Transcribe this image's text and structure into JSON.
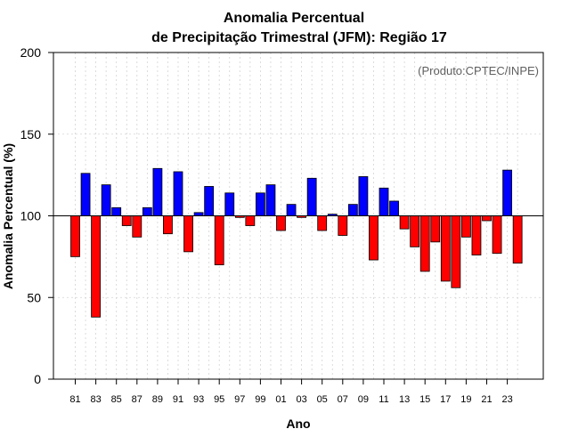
{
  "chart_data": {
    "type": "bar",
    "title_line1": "Anomalia Percentual",
    "title_line2": "de Precipitação Trimestral (JFM): Região 17",
    "xlabel": "Ano",
    "ylabel": "Anomalia Percentual (%)",
    "credit": "(Produto:CPTEC/INPE)",
    "ylim": [
      0,
      200
    ],
    "yticks": [
      0,
      50,
      100,
      150,
      200
    ],
    "baseline": 100,
    "grid": true,
    "categories": [
      "81",
      "82",
      "83",
      "84",
      "85",
      "86",
      "87",
      "88",
      "89",
      "90",
      "91",
      "92",
      "93",
      "94",
      "95",
      "96",
      "97",
      "98",
      "99",
      "00",
      "01",
      "02",
      "03",
      "04",
      "05",
      "06",
      "07",
      "08",
      "09",
      "10",
      "11",
      "12",
      "13",
      "14",
      "15",
      "16",
      "17",
      "18",
      "19",
      "20",
      "21",
      "22",
      "23",
      "24"
    ],
    "xtick_labels": [
      "81",
      "83",
      "85",
      "87",
      "89",
      "91",
      "93",
      "95",
      "97",
      "99",
      "01",
      "03",
      "05",
      "07",
      "09",
      "11",
      "13",
      "15",
      "17",
      "19",
      "21",
      "23"
    ],
    "values": [
      75,
      126,
      38,
      119,
      105,
      94,
      87,
      105,
      129,
      89,
      127,
      78,
      102,
      118,
      70,
      114,
      99,
      94,
      114,
      119,
      91,
      107,
      99,
      123,
      91,
      101,
      88,
      107,
      124,
      73,
      117,
      109,
      92,
      81,
      66,
      84,
      60,
      56,
      87,
      76,
      97,
      77,
      128,
      71
    ],
    "colors": {
      "positive": "#0000ff",
      "negative": "#ff0000",
      "grid": "#d3d3d3"
    }
  }
}
